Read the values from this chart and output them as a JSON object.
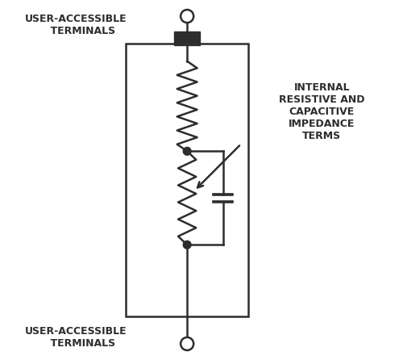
{
  "background_color": "#ffffff",
  "line_color": "#2d2d2d",
  "text_color": "#2d2d2d",
  "fig_width": 5.0,
  "fig_height": 4.46,
  "dpi": 100,
  "top_terminal_label": "USER-ACCESSIBLE\n    TERMINALS",
  "bottom_terminal_label": "USER-ACCESSIBLE\n    TERMINALS",
  "annotation_label": "INTERNAL\nRESISTIVE AND\nCAPACITIVE\nIMPEDANCE\nTERMS"
}
